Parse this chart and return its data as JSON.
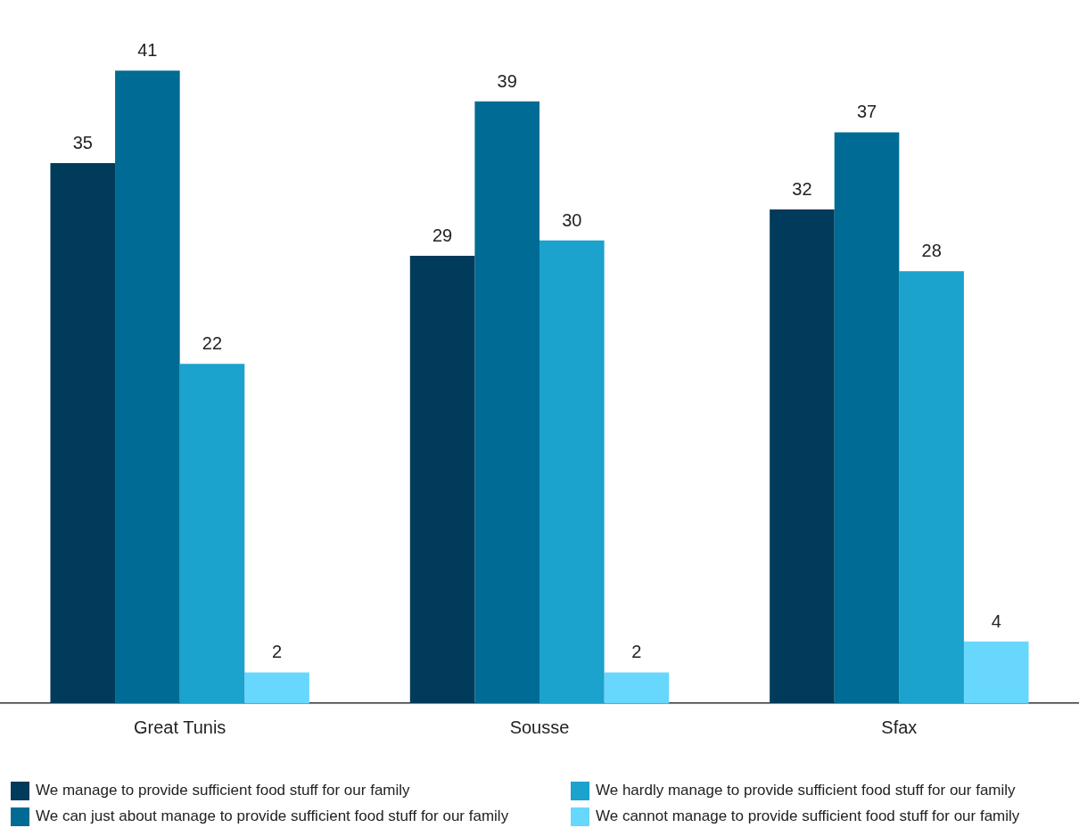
{
  "chart_data": {
    "type": "bar",
    "categories": [
      "Great Tunis",
      "Sousse",
      "Sfax"
    ],
    "series": [
      {
        "name": "We manage to provide sufficient food stuff for our family",
        "color": "#003b5c",
        "values": [
          35,
          29,
          32
        ]
      },
      {
        "name": "We can just about manage to provide sufficient food stuff for our family",
        "color": "#006b94",
        "values": [
          41,
          39,
          37
        ]
      },
      {
        "name": "We hardly manage to provide sufficient food stuff for our family",
        "color": "#1ba2cd",
        "values": [
          22,
          30,
          28
        ]
      },
      {
        "name": "We cannot manage to provide sufficient food stuff for our family",
        "color": "#67d7fd",
        "values": [
          2,
          2,
          4
        ]
      }
    ],
    "data_labels": true,
    "legend": "bottom"
  }
}
